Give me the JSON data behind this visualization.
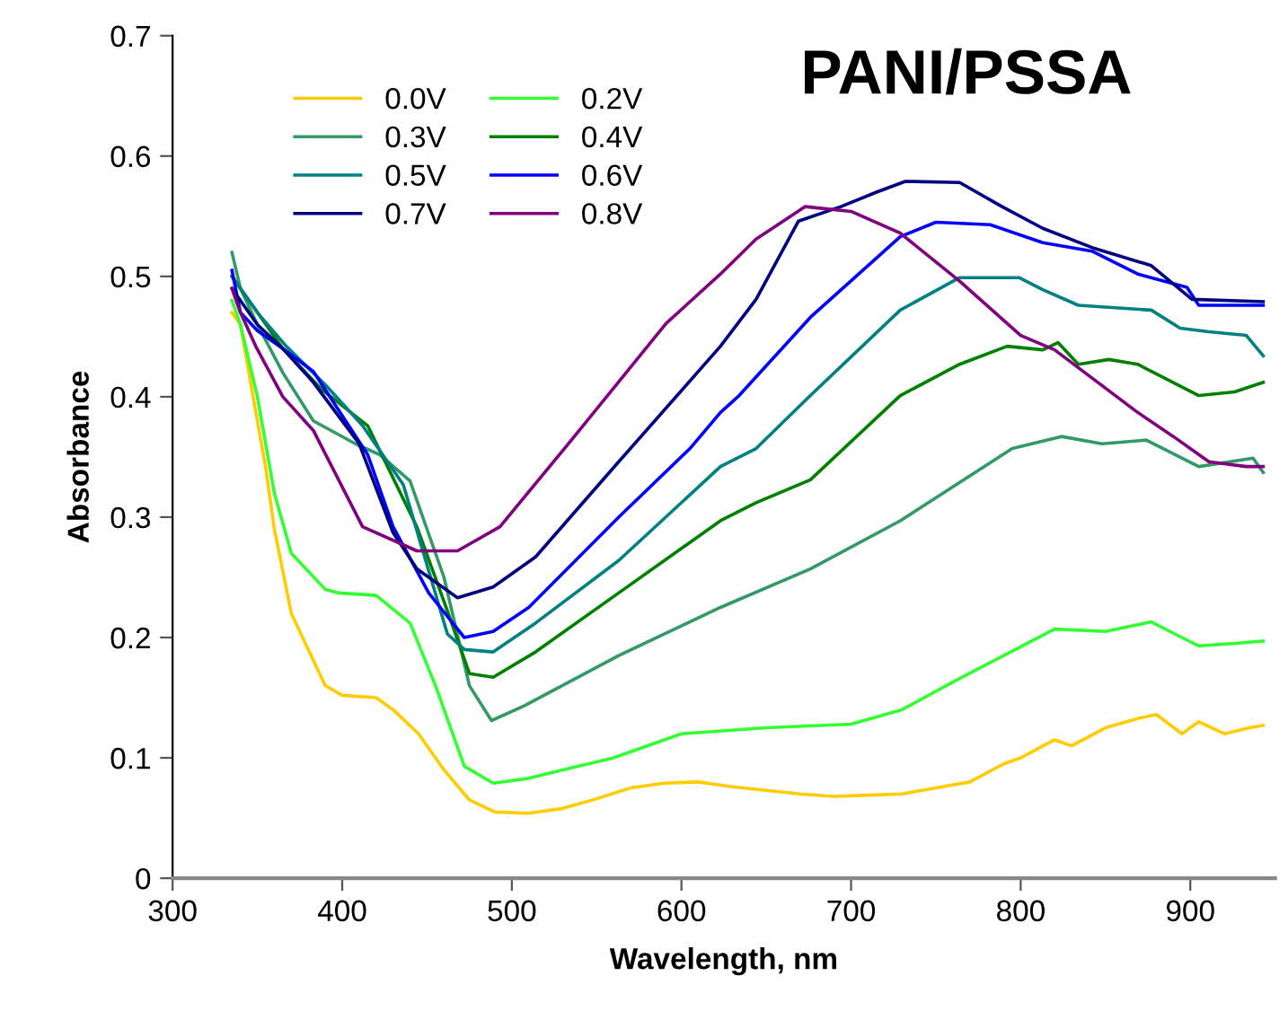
{
  "chart_data": {
    "type": "line",
    "title": "PANI/PSSA",
    "xlabel": "Wavelength, nm",
    "ylabel": "Absorbance",
    "xlim": [
      300,
      950
    ],
    "ylim": [
      0,
      0.7
    ],
    "xticks": [
      300,
      400,
      500,
      600,
      700,
      800,
      900
    ],
    "yticks": [
      0,
      0.1,
      0.2,
      0.3,
      0.4,
      0.5,
      0.6,
      0.7
    ],
    "grid": false,
    "legend": "top",
    "marker": "none",
    "line_style": "solid",
    "series": [
      {
        "name": "0.0V",
        "color": "#ffcc00",
        "x": [
          335,
          340,
          345,
          350,
          355,
          360,
          370,
          380,
          390,
          400,
          420,
          430,
          445,
          460,
          475,
          490,
          510,
          530,
          550,
          570,
          590,
          610,
          630,
          650,
          670,
          690,
          710,
          730,
          750,
          770,
          790,
          800,
          820,
          830,
          850,
          870,
          880,
          895,
          905,
          920,
          935,
          943
        ],
        "values": [
          0.47,
          0.46,
          0.42,
          0.38,
          0.34,
          0.29,
          0.22,
          0.19,
          0.16,
          0.152,
          0.15,
          0.14,
          0.12,
          0.09,
          0.065,
          0.055,
          0.054,
          0.058,
          0.066,
          0.075,
          0.079,
          0.08,
          0.076,
          0.073,
          0.07,
          0.068,
          0.069,
          0.07,
          0.075,
          0.08,
          0.095,
          0.1,
          0.115,
          0.11,
          0.125,
          0.133,
          0.136,
          0.12,
          0.13,
          0.12,
          0.125,
          0.127
        ]
      },
      {
        "name": "0.2V",
        "color": "#33ff33",
        "x": [
          335,
          340,
          350,
          360,
          370,
          380,
          390,
          398,
          420,
          440,
          455,
          472,
          489,
          510,
          530,
          560,
          600,
          650,
          700,
          730,
          764,
          790,
          820,
          850,
          877,
          895,
          905,
          925,
          943
        ],
        "values": [
          0.48,
          0.46,
          0.4,
          0.32,
          0.27,
          0.255,
          0.24,
          0.237,
          0.235,
          0.212,
          0.16,
          0.093,
          0.079,
          0.083,
          0.09,
          0.1,
          0.12,
          0.125,
          0.128,
          0.14,
          0.166,
          0.185,
          0.207,
          0.205,
          0.213,
          0.2,
          0.193,
          0.195,
          0.197
        ]
      },
      {
        "name": "0.3V",
        "color": "#339966",
        "x": [
          335,
          340,
          350,
          365,
          383,
          409,
          422,
          440,
          460,
          475,
          488,
          507,
          563,
          623,
          676,
          729,
          795,
          824,
          848,
          874,
          905,
          937,
          943
        ],
        "values": [
          0.52,
          0.49,
          0.46,
          0.42,
          0.38,
          0.36,
          0.352,
          0.33,
          0.25,
          0.16,
          0.131,
          0.143,
          0.185,
          0.225,
          0.257,
          0.297,
          0.357,
          0.367,
          0.361,
          0.364,
          0.342,
          0.349,
          0.337
        ]
      },
      {
        "name": "0.4V",
        "color": "#008000",
        "x": [
          335,
          340,
          350,
          365,
          388,
          415,
          444,
          460,
          475,
          489,
          514,
          563,
          623,
          644,
          676,
          729,
          764,
          792,
          813,
          822,
          834,
          852,
          869,
          905,
          926,
          943
        ],
        "values": [
          0.5,
          0.49,
          0.47,
          0.44,
          0.406,
          0.376,
          0.292,
          0.23,
          0.17,
          0.167,
          0.188,
          0.237,
          0.297,
          0.312,
          0.331,
          0.401,
          0.427,
          0.442,
          0.439,
          0.445,
          0.427,
          0.431,
          0.427,
          0.401,
          0.404,
          0.412
        ]
      },
      {
        "name": "0.5V",
        "color": "#008080",
        "x": [
          335,
          340,
          350,
          367,
          390,
          412,
          436,
          462,
          472,
          489,
          514,
          563,
          623,
          644,
          676,
          729,
          764,
          799,
          813,
          834,
          877,
          894,
          911,
          933,
          943
        ],
        "values": [
          0.5,
          0.49,
          0.47,
          0.442,
          0.41,
          0.376,
          0.327,
          0.203,
          0.19,
          0.188,
          0.212,
          0.264,
          0.342,
          0.357,
          0.401,
          0.472,
          0.499,
          0.499,
          0.489,
          0.476,
          0.472,
          0.457,
          0.454,
          0.451,
          0.434
        ]
      },
      {
        "name": "0.6V",
        "color": "#0000ff",
        "x": [
          335,
          340,
          350,
          365,
          383,
          415,
          430,
          451,
          472,
          489,
          510,
          563,
          605,
          623,
          634,
          676,
          729,
          750,
          782,
          813,
          842,
          869,
          898,
          905,
          943
        ],
        "values": [
          0.505,
          0.47,
          0.455,
          0.44,
          0.421,
          0.352,
          0.292,
          0.237,
          0.2,
          0.205,
          0.225,
          0.3,
          0.357,
          0.387,
          0.401,
          0.466,
          0.533,
          0.545,
          0.543,
          0.528,
          0.521,
          0.502,
          0.491,
          0.476,
          0.476
        ]
      },
      {
        "name": "0.7V",
        "color": "#000080",
        "x": [
          335,
          340,
          350,
          365,
          383,
          410,
          430,
          444,
          468,
          489,
          514,
          563,
          623,
          644,
          669,
          694,
          715,
          732,
          764,
          789,
          813,
          842,
          877,
          901,
          943
        ],
        "values": [
          0.49,
          0.48,
          0.46,
          0.44,
          0.412,
          0.361,
          0.287,
          0.257,
          0.233,
          0.242,
          0.267,
          0.346,
          0.442,
          0.481,
          0.546,
          0.558,
          0.57,
          0.579,
          0.578,
          0.558,
          0.54,
          0.524,
          0.509,
          0.481,
          0.479
        ]
      },
      {
        "name": "0.8V",
        "color": "#800080",
        "x": [
          335,
          340,
          349,
          365,
          383,
          412,
          444,
          468,
          493,
          531,
          542,
          591,
          623,
          644,
          673,
          700,
          729,
          764,
          800,
          820,
          869,
          890,
          911,
          933,
          943
        ],
        "values": [
          0.49,
          0.47,
          0.442,
          0.4,
          0.372,
          0.292,
          0.272,
          0.272,
          0.292,
          0.357,
          0.376,
          0.461,
          0.502,
          0.531,
          0.558,
          0.554,
          0.536,
          0.496,
          0.451,
          0.439,
          0.387,
          0.367,
          0.346,
          0.342,
          0.342
        ]
      }
    ]
  }
}
